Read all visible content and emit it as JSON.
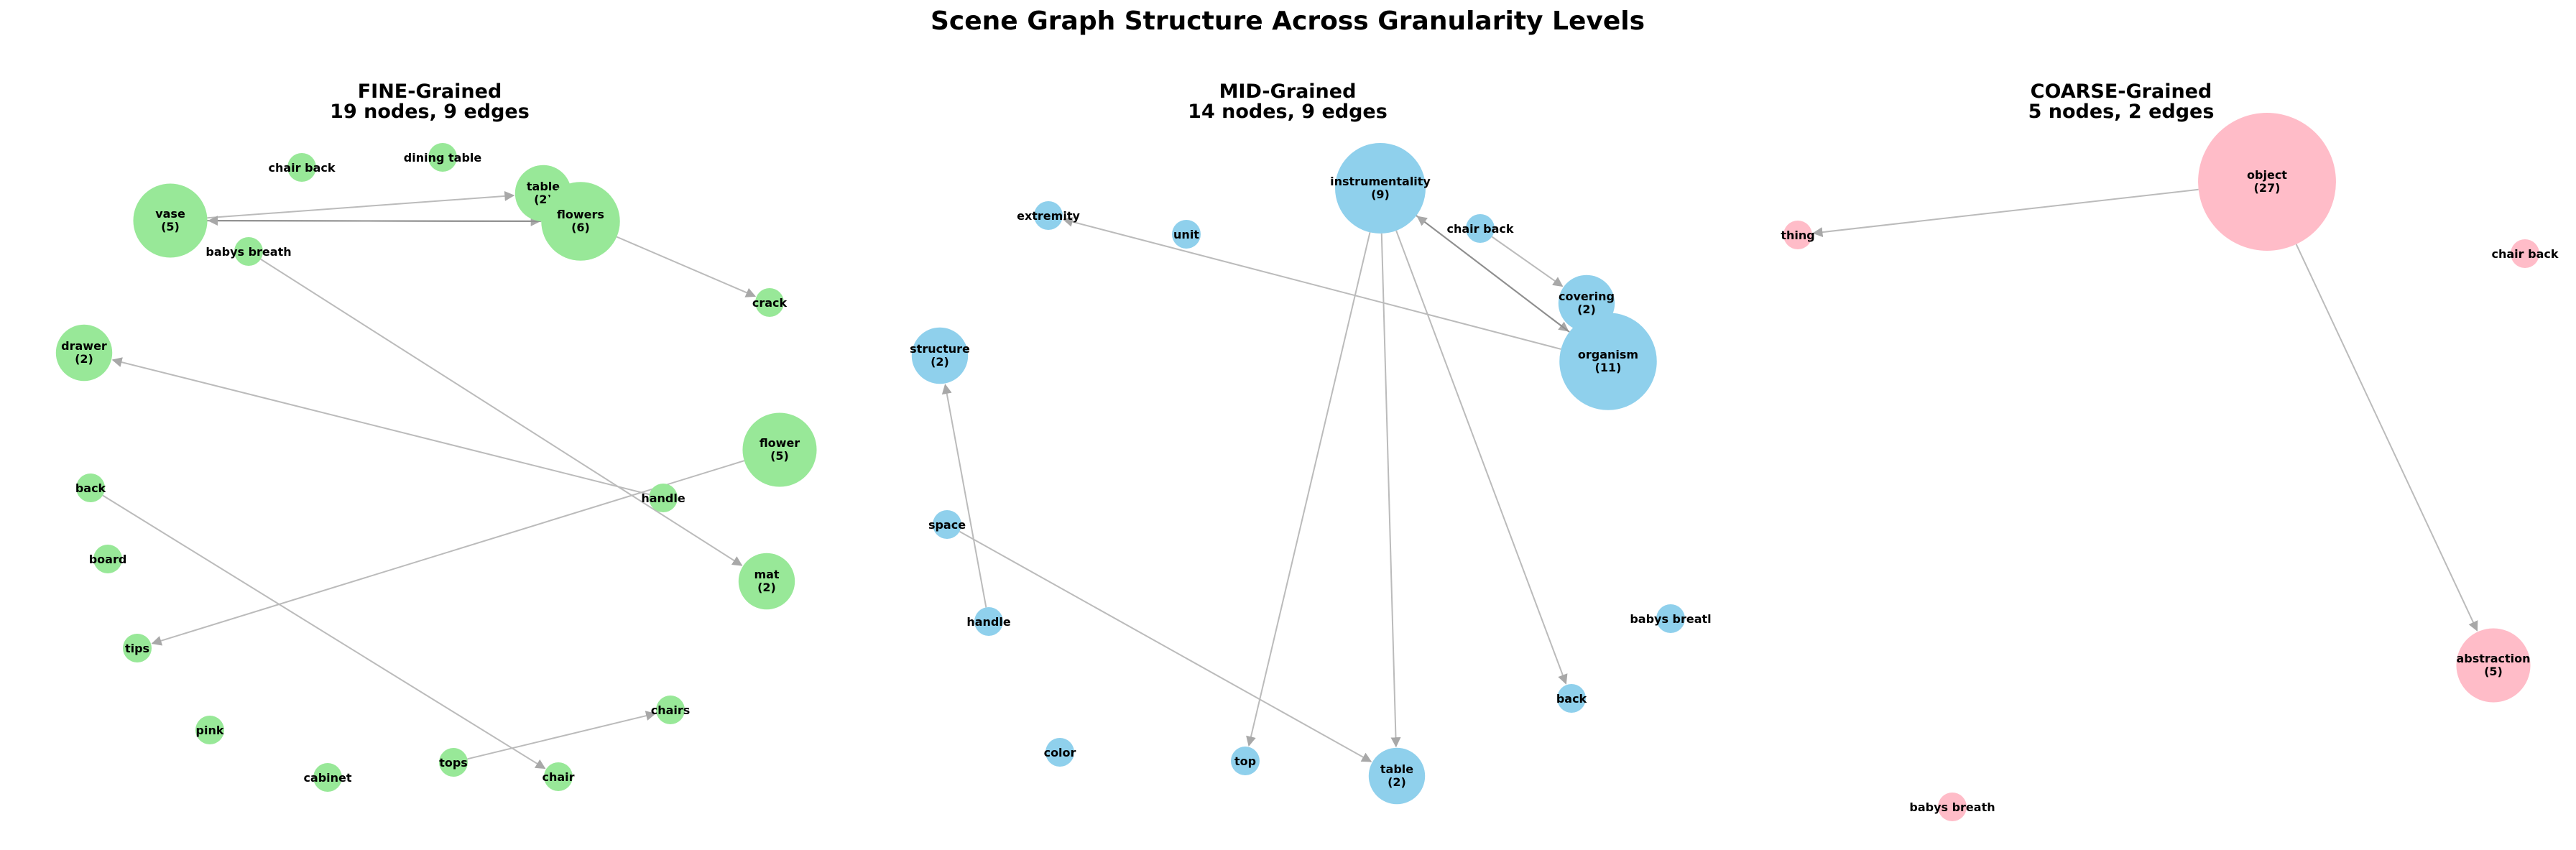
{
  "title": "Scene Graph Structure Across Granularity Levels",
  "panels": [
    {
      "id": "fine",
      "title": "FINE-Grained",
      "subtitle": "19 nodes, 9 edges",
      "color": "#98e898",
      "nodes": [
        {
          "id": "chair back",
          "label": "chair back"
        },
        {
          "id": "dining table",
          "label": "dining table"
        },
        {
          "id": "table",
          "label": "table",
          "count": 2
        },
        {
          "id": "vase",
          "label": "vase",
          "count": 5
        },
        {
          "id": "flowers",
          "label": "flowers",
          "count": 6
        },
        {
          "id": "babys breath",
          "label": "babys breath"
        },
        {
          "id": "crack",
          "label": "crack"
        },
        {
          "id": "drawer",
          "label": "drawer",
          "count": 2
        },
        {
          "id": "flower",
          "label": "flower",
          "count": 5
        },
        {
          "id": "back",
          "label": "back"
        },
        {
          "id": "handle",
          "label": "handle"
        },
        {
          "id": "board",
          "label": "board"
        },
        {
          "id": "mat",
          "label": "mat",
          "count": 2
        },
        {
          "id": "tips",
          "label": "tips"
        },
        {
          "id": "chairs",
          "label": "chairs"
        },
        {
          "id": "pink",
          "label": "pink"
        },
        {
          "id": "tops",
          "label": "tops"
        },
        {
          "id": "cabinet",
          "label": "cabinet"
        },
        {
          "id": "chair",
          "label": "chair"
        }
      ],
      "edges": [
        {
          "source": "vase",
          "target": "table"
        },
        {
          "source": "vase",
          "target": "flowers"
        },
        {
          "source": "flowers",
          "target": "vase"
        },
        {
          "source": "flowers",
          "target": "crack"
        },
        {
          "source": "babys breath",
          "target": "mat"
        },
        {
          "source": "handle",
          "target": "drawer"
        },
        {
          "source": "flower",
          "target": "tips"
        },
        {
          "source": "back",
          "target": "chair"
        },
        {
          "source": "tops",
          "target": "chairs"
        }
      ]
    },
    {
      "id": "mid",
      "title": "MID-Grained",
      "subtitle": "14 nodes, 9 edges",
      "color": "#8fd0ec",
      "nodes": [
        {
          "id": "extremity",
          "label": "extremity"
        },
        {
          "id": "unit",
          "label": "unit"
        },
        {
          "id": "instrumentality",
          "label": "instrumentality",
          "count": 9
        },
        {
          "id": "chair back",
          "label": "chair back"
        },
        {
          "id": "covering",
          "label": "covering",
          "count": 2
        },
        {
          "id": "structure",
          "label": "structure",
          "count": 2
        },
        {
          "id": "organism",
          "label": "organism",
          "count": 11
        },
        {
          "id": "space",
          "label": "space"
        },
        {
          "id": "handle",
          "label": "handle"
        },
        {
          "id": "babys breath",
          "label": "babys breatl"
        },
        {
          "id": "back",
          "label": "back"
        },
        {
          "id": "color",
          "label": "color"
        },
        {
          "id": "top",
          "label": "top"
        },
        {
          "id": "table",
          "label": "table",
          "count": 2
        }
      ],
      "edges": [
        {
          "source": "organism",
          "target": "extremity"
        },
        {
          "source": "instrumentality",
          "target": "organism"
        },
        {
          "source": "organism",
          "target": "instrumentality"
        },
        {
          "source": "chair back",
          "target": "covering"
        },
        {
          "source": "instrumentality",
          "target": "table"
        },
        {
          "source": "instrumentality",
          "target": "top"
        },
        {
          "source": "instrumentality",
          "target": "back"
        },
        {
          "source": "handle",
          "target": "structure"
        },
        {
          "source": "space",
          "target": "table"
        }
      ]
    },
    {
      "id": "coarse",
      "title": "COARSE-Grained",
      "subtitle": "5 nodes, 2 edges",
      "color": "#ffbcc8",
      "nodes": [
        {
          "id": "object",
          "label": "object",
          "count": 27
        },
        {
          "id": "thing",
          "label": "thing"
        },
        {
          "id": "chair back",
          "label": "chair back"
        },
        {
          "id": "abstraction",
          "label": "abstraction",
          "count": 5
        },
        {
          "id": "babys breath",
          "label": "babys breath"
        }
      ],
      "edges": [
        {
          "source": "object",
          "target": "thing"
        },
        {
          "source": "object",
          "target": "abstraction"
        }
      ]
    }
  ]
}
